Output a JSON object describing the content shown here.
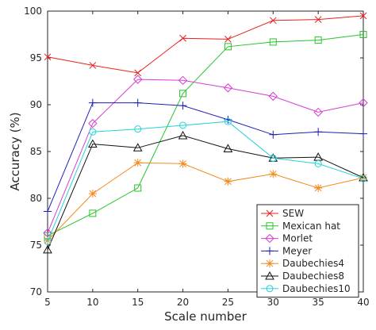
{
  "chart_data": {
    "type": "line",
    "xlabel": "Scale number",
    "ylabel": "Accuracy (%)",
    "xlim": [
      5,
      40
    ],
    "ylim": [
      70,
      100
    ],
    "xticks": [
      5,
      10,
      15,
      20,
      25,
      30,
      35,
      40
    ],
    "yticks": [
      70,
      75,
      80,
      85,
      90,
      95,
      100
    ],
    "grid": false,
    "legend_position": "bottom-right",
    "x": [
      5,
      10,
      15,
      20,
      25,
      30,
      35,
      40
    ],
    "series": [
      {
        "name": "SEW",
        "color": "#e8201f",
        "marker": "x",
        "values": [
          95.1,
          94.2,
          93.4,
          97.1,
          97.0,
          99.0,
          99.1,
          99.5
        ]
      },
      {
        "name": "Mexican hat",
        "color": "#27c52a",
        "marker": "square",
        "values": [
          76.0,
          78.4,
          81.1,
          91.2,
          96.2,
          96.7,
          96.9,
          97.5
        ]
      },
      {
        "name": "Morlet",
        "color": "#d63cd6",
        "marker": "diamond",
        "values": [
          76.3,
          88.0,
          92.7,
          92.6,
          91.8,
          90.9,
          89.2,
          90.2
        ]
      },
      {
        "name": "Meyer",
        "color": "#1d1fb5",
        "marker": "plus",
        "values": [
          78.6,
          90.2,
          90.2,
          89.9,
          88.4,
          86.8,
          87.1,
          86.9
        ]
      },
      {
        "name": "Daubechies4",
        "color": "#f48a1c",
        "marker": "star",
        "values": [
          75.5,
          80.5,
          83.8,
          83.7,
          81.8,
          82.6,
          81.1,
          82.2
        ]
      },
      {
        "name": "Daubechies8",
        "color": "#111111",
        "marker": "triangle",
        "values": [
          74.5,
          85.8,
          85.4,
          86.7,
          85.3,
          84.3,
          84.4,
          82.2
        ]
      },
      {
        "name": "Daubechies10",
        "color": "#26d3d8",
        "marker": "circle",
        "values": [
          75.4,
          87.1,
          87.4,
          87.8,
          88.2,
          84.3,
          83.7,
          82.1
        ]
      }
    ]
  }
}
